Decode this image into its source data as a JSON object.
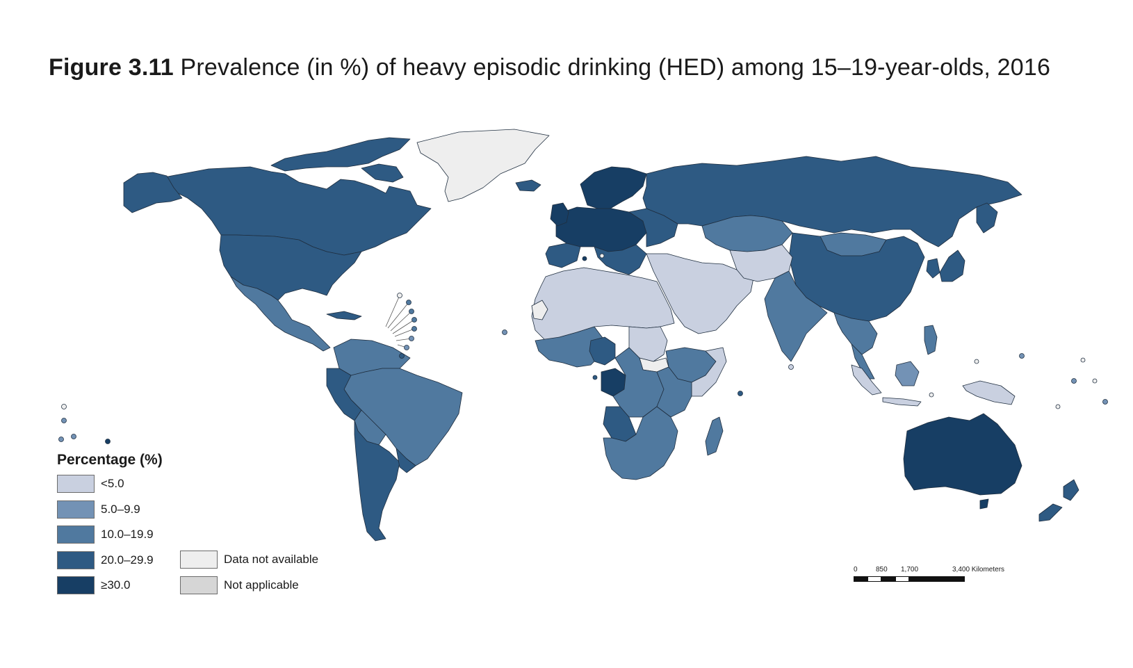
{
  "figure": {
    "label": "Figure 3.11",
    "title": "Prevalence (in %) of heavy episodic drinking (HED) among 15–19-year-olds, 2016"
  },
  "map": {
    "colors": {
      "lt5": "#c9d0e0",
      "5to9": "#7392b5",
      "10to19": "#50799f",
      "20to29": "#2e5a83",
      "ge30": "#173e64",
      "na_data": "#eeeeee",
      "not_applicable": "#d6d6d6",
      "border": "#1f2e3f"
    },
    "regions": [
      {
        "name": "Greenland",
        "category": "Data not available"
      },
      {
        "name": "Canada",
        "category": "20.0–29.9"
      },
      {
        "name": "United States",
        "category": "20.0–29.9"
      },
      {
        "name": "Mexico",
        "category": "10.0–19.9"
      },
      {
        "name": "Brazil",
        "category": "10.0–19.9"
      },
      {
        "name": "Argentina",
        "category": "20.0–29.9"
      },
      {
        "name": "Russia",
        "category": "20.0–29.9"
      },
      {
        "name": "Western Europe",
        "category": "≥30.0"
      },
      {
        "name": "Kazakhstan",
        "category": "10.0–19.9"
      },
      {
        "name": "China",
        "category": "20.0–29.9"
      },
      {
        "name": "India",
        "category": "10.0–19.9"
      },
      {
        "name": "North Africa and Middle East",
        "category": "<5.0"
      },
      {
        "name": "Central Africa",
        "category": "≥30.0"
      },
      {
        "name": "Southern Africa",
        "category": "10.0–19.9"
      },
      {
        "name": "Australia",
        "category": "≥30.0"
      },
      {
        "name": "Indonesia",
        "category": "5.0–9.9"
      },
      {
        "name": "South Sudan",
        "category": "Data not available"
      }
    ]
  },
  "legend": {
    "title": "Percentage (%)",
    "items": [
      {
        "label": "<5.0",
        "color": "#c9d0e0"
      },
      {
        "label": "5.0–9.9",
        "color": "#7392b5"
      },
      {
        "label": "10.0–19.9",
        "color": "#50799f"
      },
      {
        "label": "20.0–29.9",
        "color": "#2e5a83"
      },
      {
        "label": "≥30.0",
        "color": "#173e64"
      }
    ],
    "extra": [
      {
        "label": "Data not available",
        "color": "#eeeeee"
      },
      {
        "label": "Not applicable",
        "color": "#d6d6d6"
      }
    ]
  },
  "scale": {
    "ticks": [
      "0",
      "850",
      "1,700",
      "3,400 Kilometers"
    ]
  }
}
